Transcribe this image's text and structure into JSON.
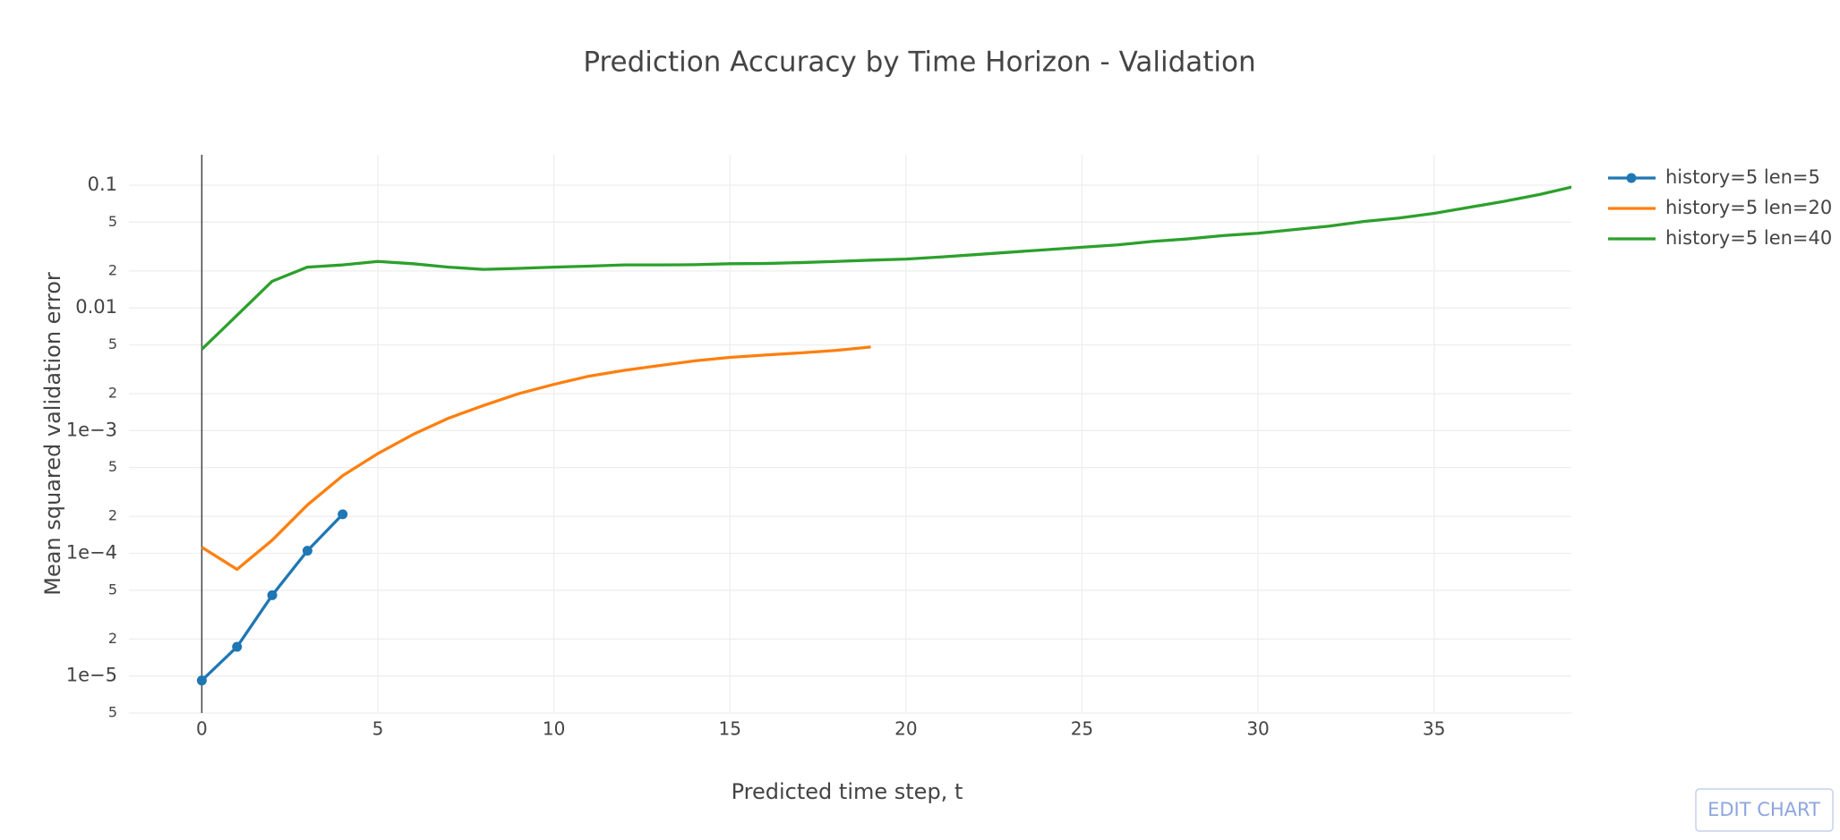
{
  "chart_data": {
    "type": "line",
    "title": "Prediction Accuracy by Time Horizon - Validation",
    "x_label": "Predicted time step, t",
    "y_label": "Mean squared validation error",
    "y_log": true,
    "grid": true,
    "zeroline": true,
    "legend": "top-right",
    "xlim": [
      -2.07,
      38.9
    ],
    "xticks": [
      0,
      5,
      10,
      15,
      20,
      25,
      30,
      35
    ],
    "ylim": [
      5e-06,
      0.177
    ],
    "yticks": [
      0.1,
      {
        "value": 0.05,
        "label": "5"
      },
      {
        "value": 0.02,
        "label": "2"
      },
      0.01,
      {
        "value": 0.005,
        "label": "5"
      },
      {
        "value": 0.002,
        "label": "2"
      },
      {
        "value": 0.001,
        "label": "1e−3"
      },
      {
        "value": 0.0005,
        "label": "5"
      },
      {
        "value": 0.0002,
        "label": "2"
      },
      {
        "value": 0.0001,
        "label": "1e−4"
      },
      {
        "value": 5e-05,
        "label": "5"
      },
      {
        "value": 2e-05,
        "label": "2"
      },
      {
        "value": 1e-05,
        "label": "1e−5"
      },
      {
        "value": 5e-06,
        "label": "5"
      }
    ],
    "series": [
      {
        "name": "history=5 len=5",
        "color": "#1f77b4",
        "markers": true,
        "x": [
          0,
          1,
          2,
          3,
          4
        ],
        "values": [
          9.2e-06,
          1.73e-05,
          4.56e-05,
          0.000105,
          0.000208
        ]
      },
      {
        "name": "history=5 len=20",
        "color": "#ff7f0e",
        "markers": false,
        "x": [
          0,
          1,
          2,
          3,
          4,
          5,
          6,
          7,
          8,
          9,
          10,
          11,
          12,
          13,
          14,
          15,
          16,
          17,
          18,
          19
        ],
        "values": [
          0.000112,
          7.4e-05,
          0.000128,
          0.000248,
          0.000429,
          0.00065,
          0.00093,
          0.00126,
          0.0016,
          0.002,
          0.00238,
          0.00278,
          0.0031,
          0.00339,
          0.0037,
          0.00395,
          0.00413,
          0.0043,
          0.0045,
          0.0048
        ]
      },
      {
        "name": "history=5 len=40",
        "color": "#2ca02c",
        "markers": false,
        "x": [
          0,
          1,
          2,
          3,
          4,
          5,
          6,
          7,
          8,
          9,
          10,
          11,
          12,
          13,
          14,
          15,
          16,
          17,
          18,
          19,
          20,
          21,
          22,
          23,
          24,
          25,
          26,
          27,
          28,
          29,
          30,
          31,
          32,
          33,
          34,
          35,
          36,
          37,
          38,
          39
        ],
        "values": [
          0.0046,
          0.0087,
          0.0165,
          0.0215,
          0.0224,
          0.0239,
          0.0229,
          0.0215,
          0.0206,
          0.021,
          0.0215,
          0.0219,
          0.0224,
          0.0224,
          0.0225,
          0.0229,
          0.023,
          0.0234,
          0.0239,
          0.0245,
          0.025,
          0.026,
          0.0272,
          0.0285,
          0.0298,
          0.0312,
          0.0326,
          0.0348,
          0.0365,
          0.0388,
          0.0406,
          0.0434,
          0.0463,
          0.0506,
          0.054,
          0.059,
          0.066,
          0.074,
          0.084,
          0.098
        ]
      }
    ]
  },
  "edit_chart": "EDIT CHART"
}
